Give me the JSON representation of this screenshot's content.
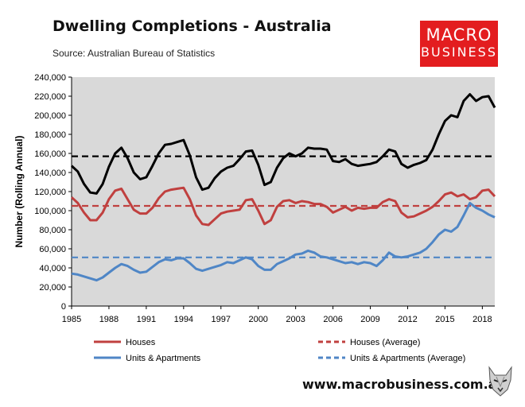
{
  "header": {
    "title": "Dwelling Completions - Australia",
    "subtitle": "Source: Australian Bureau of Statistics",
    "logo_line1": "MACRO",
    "logo_line2": "BUSINESS"
  },
  "footer": {
    "url": "www.macrobusiness.com.au"
  },
  "colors": {
    "total": "#000000",
    "houses": "#c0403f",
    "units": "#4f86c6",
    "plot_bg": "#d9d9d9",
    "logo_red": "#e31d1f"
  },
  "chart_data": {
    "type": "line",
    "title": "Dwelling Completions - Australia",
    "ylabel": "Number (Rolling Annual)",
    "xlabel": "",
    "xlim": [
      1985,
      2019
    ],
    "ylim": [
      0,
      240000
    ],
    "x_ticks": [
      "1985",
      "1988",
      "1991",
      "1994",
      "1997",
      "2000",
      "2003",
      "2006",
      "2009",
      "2012",
      "2015",
      "2018"
    ],
    "y_ticks": [
      "0",
      "20,000",
      "40,000",
      "60,000",
      "80,000",
      "100,000",
      "120,000",
      "140,000",
      "160,000",
      "180,000",
      "200,000",
      "220,000",
      "240,000"
    ],
    "grid": false,
    "legend_position": "bottom",
    "series": [
      {
        "name": "",
        "style": "solid",
        "color": "#000000",
        "x": [
          1985,
          1985.5,
          1986,
          1986.5,
          1987,
          1987.5,
          1988,
          1988.5,
          1989,
          1989.5,
          1990,
          1990.5,
          1991,
          1991.5,
          1992,
          1992.5,
          1993,
          1993.5,
          1994,
          1994.5,
          1995,
          1995.5,
          1996,
          1996.5,
          1997,
          1997.5,
          1998,
          1998.5,
          1999,
          1999.5,
          2000,
          2000.5,
          2001,
          2001.5,
          2002,
          2002.5,
          2003,
          2003.5,
          2004,
          2004.5,
          2005,
          2005.5,
          2006,
          2006.5,
          2007,
          2007.5,
          2008,
          2008.5,
          2009,
          2009.5,
          2010,
          2010.5,
          2011,
          2011.5,
          2012,
          2012.5,
          2013,
          2013.5,
          2014,
          2014.5,
          2015,
          2015.5,
          2016,
          2016.5,
          2017,
          2017.5,
          2018,
          2018.5,
          2019
        ],
        "values": [
          147000,
          141000,
          128000,
          119000,
          118000,
          128000,
          146000,
          160000,
          166000,
          155000,
          140000,
          133000,
          135000,
          147000,
          160000,
          169000,
          170000,
          172000,
          174000,
          158000,
          135000,
          122000,
          124000,
          134000,
          141000,
          145000,
          147000,
          154000,
          162000,
          163000,
          148000,
          127000,
          130000,
          145000,
          155000,
          160000,
          157000,
          160000,
          166000,
          165000,
          165000,
          164000,
          152000,
          151000,
          154000,
          149000,
          147000,
          148000,
          149000,
          151000,
          157000,
          164000,
          162000,
          149000,
          145000,
          148000,
          150000,
          153000,
          164000,
          180000,
          194000,
          200000,
          198000,
          215000,
          222000,
          215000,
          219000,
          220000,
          208000
        ]
      },
      {
        "name": "Houses",
        "style": "solid",
        "color": "#c0403f",
        "x": [
          1985,
          1985.5,
          1986,
          1986.5,
          1987,
          1987.5,
          1988,
          1988.5,
          1989,
          1989.5,
          1990,
          1990.5,
          1991,
          1991.5,
          1992,
          1992.5,
          1993,
          1993.5,
          1994,
          1994.5,
          1995,
          1995.5,
          1996,
          1996.5,
          1997,
          1997.5,
          1998,
          1998.5,
          1999,
          1999.5,
          2000,
          2000.5,
          2001,
          2001.5,
          2002,
          2002.5,
          2003,
          2003.5,
          2004,
          2004.5,
          2005,
          2005.5,
          2006,
          2006.5,
          2007,
          2007.5,
          2008,
          2008.5,
          2009,
          2009.5,
          2010,
          2010.5,
          2011,
          2011.5,
          2012,
          2012.5,
          2013,
          2013.5,
          2014,
          2014.5,
          2015,
          2015.5,
          2016,
          2016.5,
          2017,
          2017.5,
          2018,
          2018.5,
          2019
        ],
        "values": [
          114000,
          108000,
          98000,
          90000,
          90000,
          98000,
          112000,
          121000,
          123000,
          112000,
          101000,
          97000,
          97000,
          103000,
          113000,
          120000,
          122000,
          123000,
          124000,
          112000,
          95000,
          86000,
          85000,
          91000,
          97000,
          99000,
          100000,
          101000,
          111000,
          112000,
          100000,
          86000,
          90000,
          104000,
          110000,
          111000,
          108000,
          110000,
          109000,
          107000,
          107000,
          104000,
          98000,
          101000,
          104000,
          100000,
          103000,
          102000,
          103000,
          103000,
          109000,
          112000,
          110000,
          98000,
          93000,
          94000,
          97000,
          100000,
          104000,
          110000,
          117000,
          119000,
          115000,
          117000,
          112000,
          114000,
          121000,
          122000,
          115000
        ]
      },
      {
        "name": "Houses (Average)",
        "style": "dashed",
        "color": "#c0403f",
        "x": [
          1985,
          2019
        ],
        "values": [
          105000,
          105000
        ]
      },
      {
        "name": "",
        "style": "dashed",
        "color": "#000000",
        "x": [
          1985,
          2019
        ],
        "values": [
          157000,
          157000
        ]
      },
      {
        "name": "Units & Apartments",
        "style": "solid",
        "color": "#4f86c6",
        "x": [
          1985,
          1985.5,
          1986,
          1986.5,
          1987,
          1987.5,
          1988,
          1988.5,
          1989,
          1989.5,
          1990,
          1990.5,
          1991,
          1991.5,
          1992,
          1992.5,
          1993,
          1993.5,
          1994,
          1994.5,
          1995,
          1995.5,
          1996,
          1996.5,
          1997,
          1997.5,
          1998,
          1998.5,
          1999,
          1999.5,
          2000,
          2000.5,
          2001,
          2001.5,
          2002,
          2002.5,
          2003,
          2003.5,
          2004,
          2004.5,
          2005,
          2005.5,
          2006,
          2006.5,
          2007,
          2007.5,
          2008,
          2008.5,
          2009,
          2009.5,
          2010,
          2010.5,
          2011,
          2011.5,
          2012,
          2012.5,
          2013,
          2013.5,
          2014,
          2014.5,
          2015,
          2015.5,
          2016,
          2016.5,
          2017,
          2017.5,
          2018,
          2018.5,
          2019
        ],
        "values": [
          34000,
          33000,
          31000,
          29000,
          27000,
          30000,
          35000,
          40000,
          44000,
          42000,
          38000,
          35000,
          36000,
          41000,
          46000,
          49000,
          48000,
          50000,
          50000,
          45000,
          39000,
          37000,
          39000,
          41000,
          43000,
          46000,
          45000,
          48000,
          51000,
          49000,
          42000,
          38000,
          38000,
          44000,
          47000,
          50000,
          54000,
          55000,
          58000,
          56000,
          52000,
          51000,
          49000,
          47000,
          45000,
          46000,
          44000,
          46000,
          45000,
          42000,
          48000,
          56000,
          52000,
          51000,
          52000,
          54000,
          56000,
          60000,
          67000,
          75000,
          80000,
          78000,
          83000,
          95000,
          108000,
          103000,
          100000,
          96000,
          93000
        ]
      },
      {
        "name": "Units & Apartments (Average)",
        "style": "dashed",
        "color": "#4f86c6",
        "x": [
          1985,
          2019
        ],
        "values": [
          51000,
          51000
        ]
      }
    ]
  }
}
